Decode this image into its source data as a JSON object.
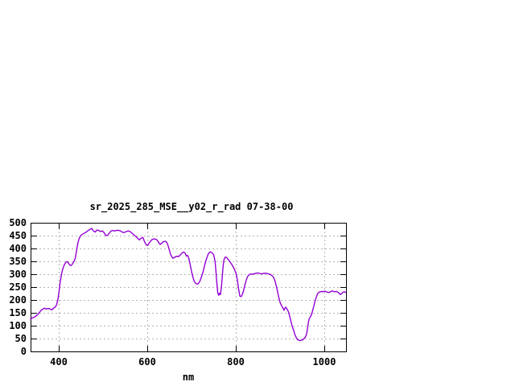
{
  "window": {
    "background": "#ffffff"
  },
  "chart_data": {
    "type": "line",
    "title": "sr_2025_285_MSE__y02_r_rad 07-38-00",
    "xlabel": "nm",
    "ylabel": "",
    "x_range": [
      336,
      1049
    ],
    "y_range": [
      0,
      500
    ],
    "x_ticks": [
      400,
      600,
      800,
      1000
    ],
    "y_ticks": [
      0,
      50,
      100,
      150,
      200,
      250,
      300,
      350,
      400,
      450,
      500
    ],
    "grid": "dashed",
    "legend": "none",
    "line_color": "#9400d3",
    "grid_color": "#b3b3b3",
    "axis_color": "#000000",
    "series": [
      {
        "points": [
          [
            336,
            126
          ],
          [
            340,
            130
          ],
          [
            344,
            133
          ],
          [
            348,
            137
          ],
          [
            352,
            143
          ],
          [
            356,
            152
          ],
          [
            360,
            160
          ],
          [
            364,
            165
          ],
          [
            368,
            168
          ],
          [
            372,
            165
          ],
          [
            376,
            167
          ],
          [
            380,
            165
          ],
          [
            384,
            162
          ],
          [
            388,
            168
          ],
          [
            392,
            173
          ],
          [
            395,
            182
          ],
          [
            398,
            205
          ],
          [
            400,
            228
          ],
          [
            402,
            258
          ],
          [
            404,
            282
          ],
          [
            406,
            300
          ],
          [
            408,
            316
          ],
          [
            410,
            327
          ],
          [
            413,
            339
          ],
          [
            416,
            347
          ],
          [
            419,
            349
          ],
          [
            422,
            342
          ],
          [
            425,
            335
          ],
          [
            428,
            334
          ],
          [
            431,
            341
          ],
          [
            434,
            349
          ],
          [
            437,
            362
          ],
          [
            440,
            392
          ],
          [
            443,
            422
          ],
          [
            446,
            440
          ],
          [
            449,
            449
          ],
          [
            452,
            454
          ],
          [
            455,
            457
          ],
          [
            458,
            460
          ],
          [
            462,
            464
          ],
          [
            466,
            470
          ],
          [
            470,
            474
          ],
          [
            474,
            478
          ],
          [
            478,
            468
          ],
          [
            482,
            464
          ],
          [
            486,
            472
          ],
          [
            490,
            470
          ],
          [
            494,
            466
          ],
          [
            498,
            468
          ],
          [
            502,
            462
          ],
          [
            506,
            450
          ],
          [
            510,
            452
          ],
          [
            514,
            460
          ],
          [
            518,
            468
          ],
          [
            522,
            470
          ],
          [
            526,
            468
          ],
          [
            530,
            470
          ],
          [
            534,
            471
          ],
          [
            538,
            469
          ],
          [
            542,
            465
          ],
          [
            546,
            462
          ],
          [
            550,
            464
          ],
          [
            554,
            467
          ],
          [
            558,
            468
          ],
          [
            562,
            464
          ],
          [
            566,
            458
          ],
          [
            570,
            452
          ],
          [
            574,
            447
          ],
          [
            578,
            440
          ],
          [
            582,
            433
          ],
          [
            586,
            440
          ],
          [
            590,
            443
          ],
          [
            594,
            425
          ],
          [
            598,
            413
          ],
          [
            601,
            412
          ],
          [
            604,
            421
          ],
          [
            607,
            428
          ],
          [
            610,
            434
          ],
          [
            614,
            437
          ],
          [
            618,
            437
          ],
          [
            622,
            433
          ],
          [
            626,
            422
          ],
          [
            629,
            416
          ],
          [
            632,
            420
          ],
          [
            636,
            426
          ],
          [
            640,
            428
          ],
          [
            644,
            424
          ],
          [
            648,
            405
          ],
          [
            652,
            380
          ],
          [
            655,
            368
          ],
          [
            658,
            362
          ],
          [
            662,
            366
          ],
          [
            666,
            370
          ],
          [
            670,
            368
          ],
          [
            674,
            374
          ],
          [
            678,
            382
          ],
          [
            682,
            386
          ],
          [
            685,
            383
          ],
          [
            688,
            371
          ],
          [
            691,
            373
          ],
          [
            694,
            360
          ],
          [
            697,
            335
          ],
          [
            700,
            310
          ],
          [
            703,
            288
          ],
          [
            706,
            272
          ],
          [
            710,
            263
          ],
          [
            714,
            262
          ],
          [
            718,
            270
          ],
          [
            722,
            288
          ],
          [
            726,
            310
          ],
          [
            730,
            338
          ],
          [
            734,
            362
          ],
          [
            738,
            380
          ],
          [
            742,
            387
          ],
          [
            746,
            384
          ],
          [
            750,
            375
          ],
          [
            753,
            350
          ],
          [
            755,
            310
          ],
          [
            757,
            265
          ],
          [
            759,
            228
          ],
          [
            761,
            218
          ],
          [
            763,
            226
          ],
          [
            765,
            221
          ],
          [
            767,
            245
          ],
          [
            769,
            285
          ],
          [
            771,
            330
          ],
          [
            773,
            355
          ],
          [
            775,
            365
          ],
          [
            777,
            367
          ],
          [
            780,
            363
          ],
          [
            784,
            355
          ],
          [
            788,
            345
          ],
          [
            792,
            335
          ],
          [
            796,
            322
          ],
          [
            800,
            305
          ],
          [
            803,
            282
          ],
          [
            806,
            245
          ],
          [
            809,
            215
          ],
          [
            812,
            213
          ],
          [
            815,
            222
          ],
          [
            818,
            240
          ],
          [
            821,
            262
          ],
          [
            824,
            280
          ],
          [
            827,
            292
          ],
          [
            830,
            298
          ],
          [
            834,
            301
          ],
          [
            838,
            300
          ],
          [
            842,
            302
          ],
          [
            846,
            304
          ],
          [
            850,
            305
          ],
          [
            854,
            303
          ],
          [
            858,
            301
          ],
          [
            862,
            303
          ],
          [
            866,
            304
          ],
          [
            870,
            303
          ],
          [
            874,
            301
          ],
          [
            878,
            299
          ],
          [
            882,
            294
          ],
          [
            885,
            288
          ],
          [
            888,
            276
          ],
          [
            891,
            258
          ],
          [
            894,
            235
          ],
          [
            897,
            210
          ],
          [
            900,
            190
          ],
          [
            903,
            179
          ],
          [
            906,
            170
          ],
          [
            909,
            160
          ],
          [
            911,
            168
          ],
          [
            913,
            172
          ],
          [
            915,
            167
          ],
          [
            918,
            157
          ],
          [
            921,
            142
          ],
          [
            924,
            120
          ],
          [
            927,
            100
          ],
          [
            930,
            85
          ],
          [
            933,
            68
          ],
          [
            936,
            55
          ],
          [
            939,
            47
          ],
          [
            942,
            44
          ],
          [
            945,
            42
          ],
          [
            948,
            43
          ],
          [
            951,
            45
          ],
          [
            954,
            50
          ],
          [
            957,
            55
          ],
          [
            960,
            68
          ],
          [
            962,
            90
          ],
          [
            964,
            115
          ],
          [
            966,
            128
          ],
          [
            968,
            133
          ],
          [
            970,
            139
          ],
          [
            973,
            155
          ],
          [
            976,
            175
          ],
          [
            979,
            196
          ],
          [
            982,
            212
          ],
          [
            985,
            225
          ],
          [
            988,
            230
          ],
          [
            991,
            232
          ],
          [
            994,
            233
          ],
          [
            997,
            232
          ],
          [
            1000,
            234
          ],
          [
            1003,
            233
          ],
          [
            1006,
            231
          ],
          [
            1009,
            229
          ],
          [
            1012,
            230
          ],
          [
            1015,
            233
          ],
          [
            1018,
            235
          ],
          [
            1021,
            233
          ],
          [
            1024,
            232
          ],
          [
            1027,
            233
          ],
          [
            1030,
            231
          ],
          [
            1033,
            227
          ],
          [
            1036,
            221
          ],
          [
            1039,
            224
          ],
          [
            1042,
            230
          ],
          [
            1045,
            232
          ],
          [
            1048,
            229
          ]
        ]
      }
    ]
  }
}
